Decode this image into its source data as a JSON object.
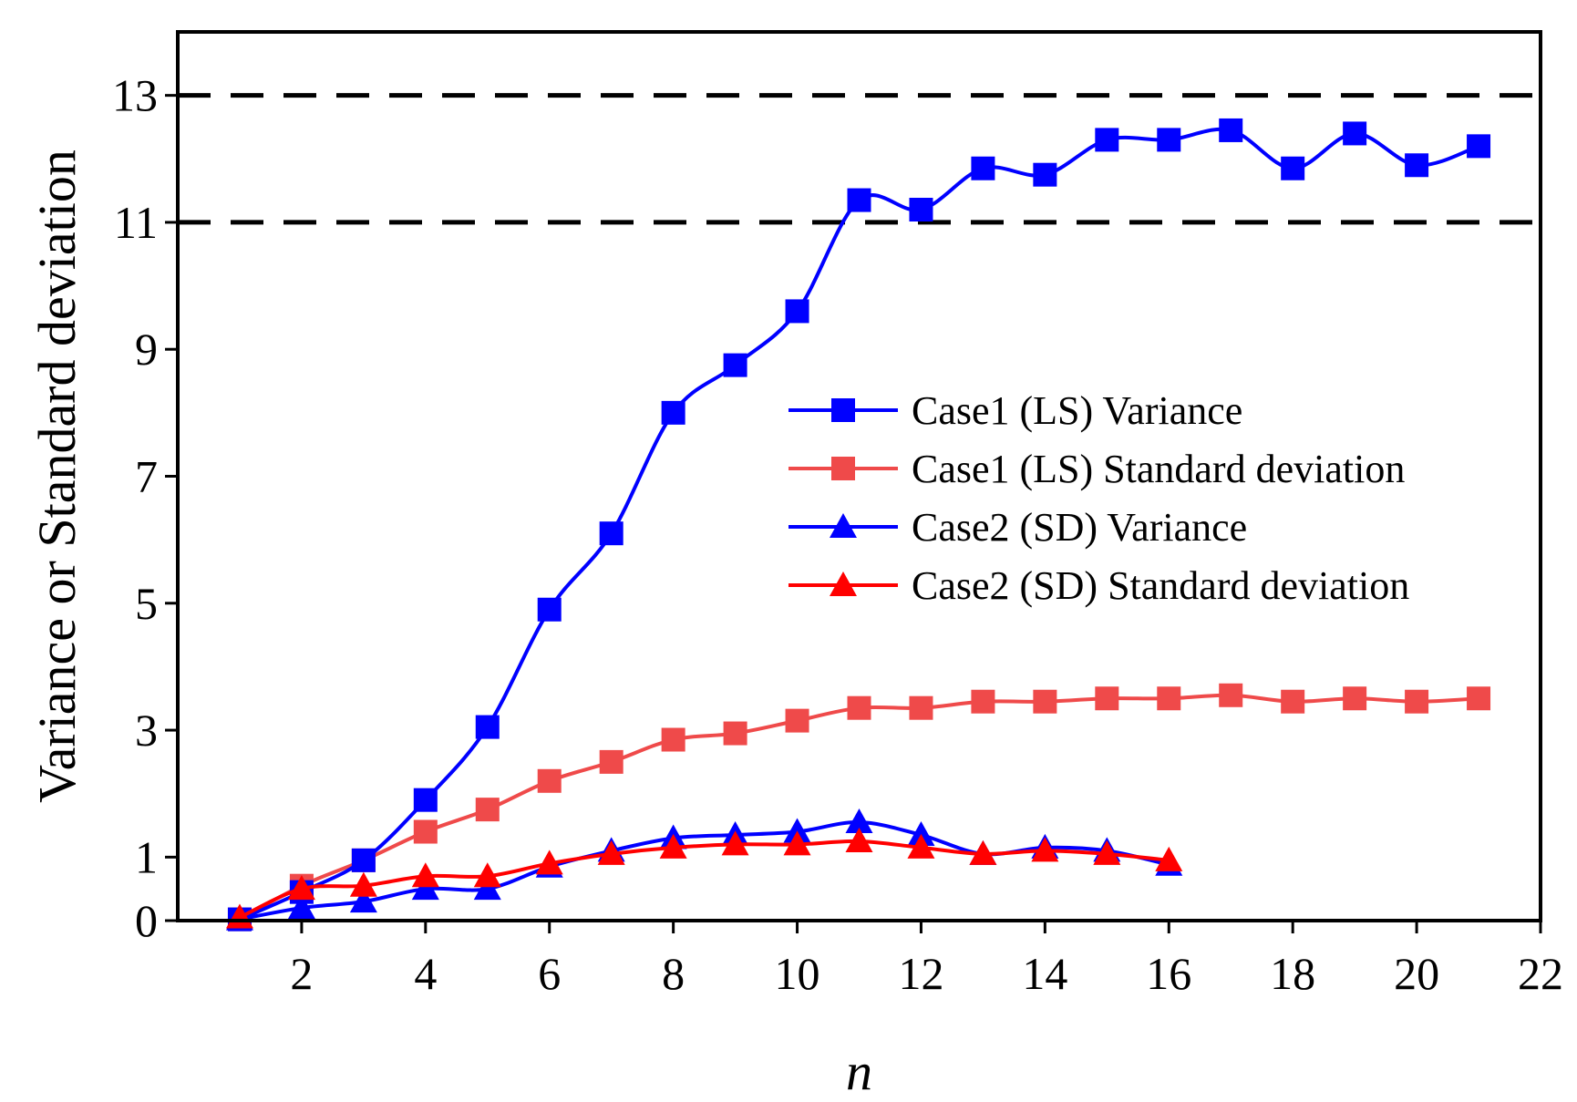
{
  "chart_data": {
    "type": "line",
    "title": "",
    "xlabel": "n",
    "ylabel": "Variance or Standard deviation",
    "xlim": [
      0,
      22
    ],
    "ylim": [
      0,
      14
    ],
    "x_ticks": [
      2,
      4,
      6,
      8,
      10,
      12,
      14,
      16,
      18,
      20,
      22
    ],
    "y_ticks": [
      0,
      1,
      3,
      5,
      7,
      9,
      11,
      13
    ],
    "reference_lines": [
      11,
      13
    ],
    "grid": false,
    "legend_position": "center-right",
    "series": [
      {
        "name": "Case1 (LS) Variance",
        "color": "#0000ff",
        "marker": "square",
        "x": [
          1,
          2,
          3,
          4,
          5,
          6,
          7,
          8,
          9,
          10,
          11,
          12,
          13,
          14,
          15,
          16,
          17,
          18,
          19,
          20,
          21
        ],
        "values": [
          0.02,
          0.45,
          0.95,
          1.9,
          3.05,
          4.9,
          6.1,
          8.0,
          8.75,
          9.6,
          11.35,
          11.2,
          11.85,
          11.75,
          12.3,
          12.3,
          12.45,
          11.85,
          12.4,
          11.9,
          12.2
        ]
      },
      {
        "name": "Case1 (LS) Standard deviation",
        "color": "#ef4a4a",
        "marker": "square",
        "x": [
          1,
          2,
          3,
          4,
          5,
          6,
          7,
          8,
          9,
          10,
          11,
          12,
          13,
          14,
          15,
          16,
          17,
          18,
          19,
          20,
          21
        ],
        "values": [
          0.02,
          0.55,
          0.95,
          1.4,
          1.75,
          2.2,
          2.5,
          2.85,
          2.95,
          3.15,
          3.35,
          3.35,
          3.45,
          3.45,
          3.5,
          3.5,
          3.55,
          3.45,
          3.5,
          3.45,
          3.5
        ]
      },
      {
        "name": "Case2 (SD) Variance",
        "color": "#0000ff",
        "marker": "triangle",
        "x": [
          1,
          2,
          3,
          4,
          5,
          6,
          7,
          8,
          9,
          10,
          11,
          12,
          13,
          14,
          15,
          16
        ],
        "values": [
          0.02,
          0.2,
          0.3,
          0.5,
          0.5,
          0.85,
          1.1,
          1.3,
          1.35,
          1.4,
          1.55,
          1.35,
          1.05,
          1.15,
          1.1,
          0.88
        ]
      },
      {
        "name": "Case2 (SD) Standard deviation",
        "color": "#ff0000",
        "marker": "triangle",
        "x": [
          1,
          2,
          3,
          4,
          5,
          6,
          7,
          8,
          9,
          10,
          11,
          12,
          13,
          14,
          15,
          16
        ],
        "values": [
          0.05,
          0.5,
          0.55,
          0.7,
          0.7,
          0.9,
          1.05,
          1.15,
          1.2,
          1.2,
          1.25,
          1.15,
          1.05,
          1.1,
          1.05,
          0.95
        ]
      }
    ]
  }
}
